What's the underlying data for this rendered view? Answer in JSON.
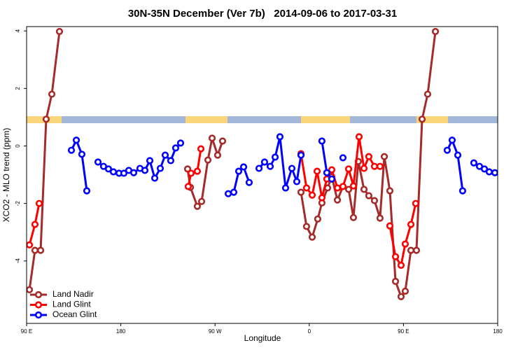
{
  "chart_data": {
    "type": "line",
    "title": "30N-35N December (Ver 7b)   2014-09-06 to 2017-03-31",
    "xlabel": "Longitude",
    "ylabel": "XCO2 - MLO trend (ppm)",
    "xlim": [
      90,
      540
    ],
    "ylim": [
      -6.17,
      4.15
    ],
    "xticks": [
      {
        "value": 90,
        "label": "90 E"
      },
      {
        "value": 180,
        "label": "180"
      },
      {
        "value": 270,
        "label": "90 W"
      },
      {
        "value": 360,
        "label": "0"
      },
      {
        "value": 450,
        "label": "90 E"
      },
      {
        "value": 540,
        "label": "180"
      }
    ],
    "yticks": [
      -4,
      -2,
      0,
      2,
      4
    ],
    "legend": "bottom-left",
    "series": [
      {
        "name": "Land Nadir",
        "color": "#a52a2a",
        "x": [
          92.7,
          98.0,
          103.4,
          108.7,
          114.1,
          121.4,
          null,
          243.8,
          246.5,
          253.1,
          257.2,
          263.2,
          267.2,
          272.5,
          277.2,
          null,
          352.1,
          357.4,
          362.8,
          368.1,
          372.1,
          377.5,
          381.5,
          386.9,
          392.2,
          397.6,
          402.2,
          406.9,
          412.3,
          416.9,
          422.3,
          427.6,
          431.7,
          437.0,
          442.4,
          447.7,
          451.7,
          457.1,
          462.4,
          467.8,
          473.1,
          480.5
        ],
        "values": [
          -5.0,
          -3.63,
          -3.63,
          0.93,
          1.8,
          3.98,
          null,
          -0.8,
          -1.44,
          -2.1,
          -1.93,
          -0.49,
          0.27,
          -0.32,
          0.17,
          null,
          -1.61,
          -2.8,
          -3.17,
          -2.54,
          -1.98,
          -1.46,
          -1.07,
          -1.88,
          -1.41,
          -1.51,
          -2.49,
          -0.54,
          -1.51,
          -1.73,
          -1.9,
          -2.51,
          -0.37,
          -1.56,
          -4.71,
          -5.24,
          -5.05,
          -3.63,
          -3.63,
          0.93,
          1.8,
          3.98
        ]
      },
      {
        "name": "Land Glint",
        "color": "#ff0000",
        "x": [
          92.7,
          98.0,
          102.0,
          null,
          244.4,
          247.1,
          253.1,
          256.5,
          null,
          352.1,
          357.4,
          362.8,
          367.5,
          372.1,
          376.8,
          381.5,
          386.9,
          392.2,
          397.6,
          402.2,
          407.6,
          412.3,
          416.9,
          422.3,
          427.6,
          null,
          437.0,
          442.4,
          447.7,
          451.7,
          457.1,
          461.7
        ],
        "values": [
          -3.44,
          -2.73,
          -2.0,
          null,
          -1.41,
          -0.95,
          -0.88,
          -0.1,
          null,
          -0.27,
          -1.46,
          -1.71,
          -0.88,
          -1.8,
          -1.15,
          -0.83,
          -1.46,
          -1.41,
          -0.8,
          -1.39,
          0.32,
          -0.78,
          -0.37,
          -0.71,
          -0.71,
          null,
          -2.78,
          -3.85,
          -4.15,
          -3.41,
          -2.73,
          -2.0
        ]
      },
      {
        "name": "Ocean Glint",
        "color": "#0000ff",
        "x": [
          132.8,
          137.5,
          142.8,
          147.5,
          null,
          158.2,
          163.5,
          168.2,
          172.9,
          178.3,
          182.9,
          187.6,
          192.3,
          198.3,
          203.0,
          207.7,
          212.4,
          217.7,
          222.4,
          227.7,
          232.4,
          237.1,
          null,
          282.6,
          287.9,
          292.6,
          297.3,
          302.6,
          null,
          312.0,
          317.3,
          322.7,
          327.4,
          332.0,
          337.4,
          343.4,
          348.1,
          352.1,
          null,
          372.1,
          376.8,
          381.5,
          null,
          392.2,
          null,
          491.8,
          496.5,
          501.9,
          506.5,
          null,
          517.2,
          522.6,
          527.3,
          531.9,
          537.3
        ],
        "values": [
          -0.15,
          0.2,
          -0.29,
          -1.56,
          null,
          -0.56,
          -0.71,
          -0.8,
          -0.9,
          -0.95,
          -0.95,
          -0.85,
          -0.93,
          -0.78,
          -0.85,
          -0.51,
          -1.12,
          -0.78,
          -0.32,
          -0.51,
          -0.07,
          0.1,
          null,
          -1.66,
          -1.61,
          -0.88,
          -0.73,
          -1.27,
          null,
          -0.78,
          -0.56,
          -0.71,
          -0.39,
          0.32,
          -1.46,
          -0.78,
          -1.24,
          -0.32,
          null,
          0.17,
          -0.93,
          -1.15,
          null,
          -0.41,
          null,
          -0.15,
          0.2,
          -0.32,
          -1.56,
          null,
          -0.59,
          -0.71,
          -0.8,
          -0.9,
          -0.93
        ]
      }
    ]
  }
}
